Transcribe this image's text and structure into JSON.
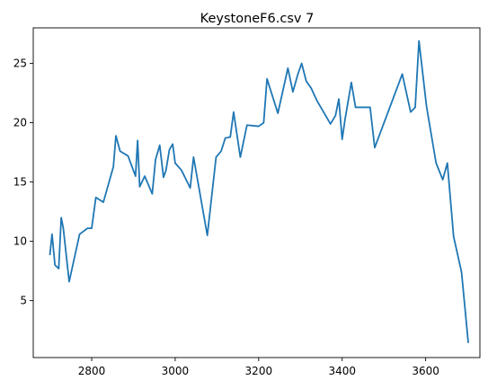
{
  "chart_data": {
    "type": "line",
    "title": "KeystoneF6.csv 7",
    "xlabel": "",
    "ylabel": "",
    "xlim": [
      2660,
      3730
    ],
    "ylim": [
      0.2,
      28.0
    ],
    "xticks": [
      2800,
      3000,
      3200,
      3400,
      3600
    ],
    "yticks": [
      5,
      10,
      15,
      20,
      25
    ],
    "grid": false,
    "series": [
      {
        "color": "#1f77b4",
        "x": [
          2700,
          2705,
          2712,
          2721,
          2727,
          2732,
          2746,
          2771,
          2790,
          2800,
          2810,
          2828,
          2852,
          2858,
          2868,
          2887,
          2905,
          2910,
          2915,
          2927,
          2945,
          2953,
          2963,
          2972,
          2978,
          2986,
          2994,
          3000,
          3015,
          3036,
          3044,
          3060,
          3077,
          3098,
          3110,
          3120,
          3132,
          3140,
          3156,
          3172,
          3200,
          3212,
          3220,
          3246,
          3270,
          3282,
          3294,
          3303,
          3314,
          3326,
          3339,
          3372,
          3384,
          3392,
          3400,
          3407,
          3422,
          3432,
          3467,
          3478,
          3544,
          3564,
          3575,
          3584,
          3602,
          3625,
          3641,
          3652,
          3667,
          3686,
          3702
        ],
        "y": [
          8.9,
          10.6,
          8.0,
          7.7,
          12.0,
          11.1,
          6.6,
          10.6,
          11.1,
          11.1,
          13.7,
          13.3,
          16.3,
          18.9,
          17.6,
          17.2,
          15.5,
          18.5,
          14.6,
          15.5,
          14.0,
          16.9,
          18.1,
          15.4,
          16.0,
          17.7,
          18.2,
          16.6,
          16.0,
          14.5,
          17.1,
          13.9,
          10.5,
          17.1,
          17.6,
          18.7,
          18.8,
          20.9,
          17.1,
          19.8,
          19.7,
          20.0,
          23.7,
          20.8,
          24.6,
          22.6,
          24.1,
          25.0,
          23.5,
          22.9,
          21.9,
          19.9,
          20.6,
          22.0,
          18.6,
          20.3,
          23.4,
          21.3,
          21.3,
          17.9,
          24.1,
          20.9,
          21.3,
          26.9,
          21.4,
          16.6,
          15.2,
          16.6,
          10.4,
          7.4,
          1.5
        ]
      }
    ]
  }
}
